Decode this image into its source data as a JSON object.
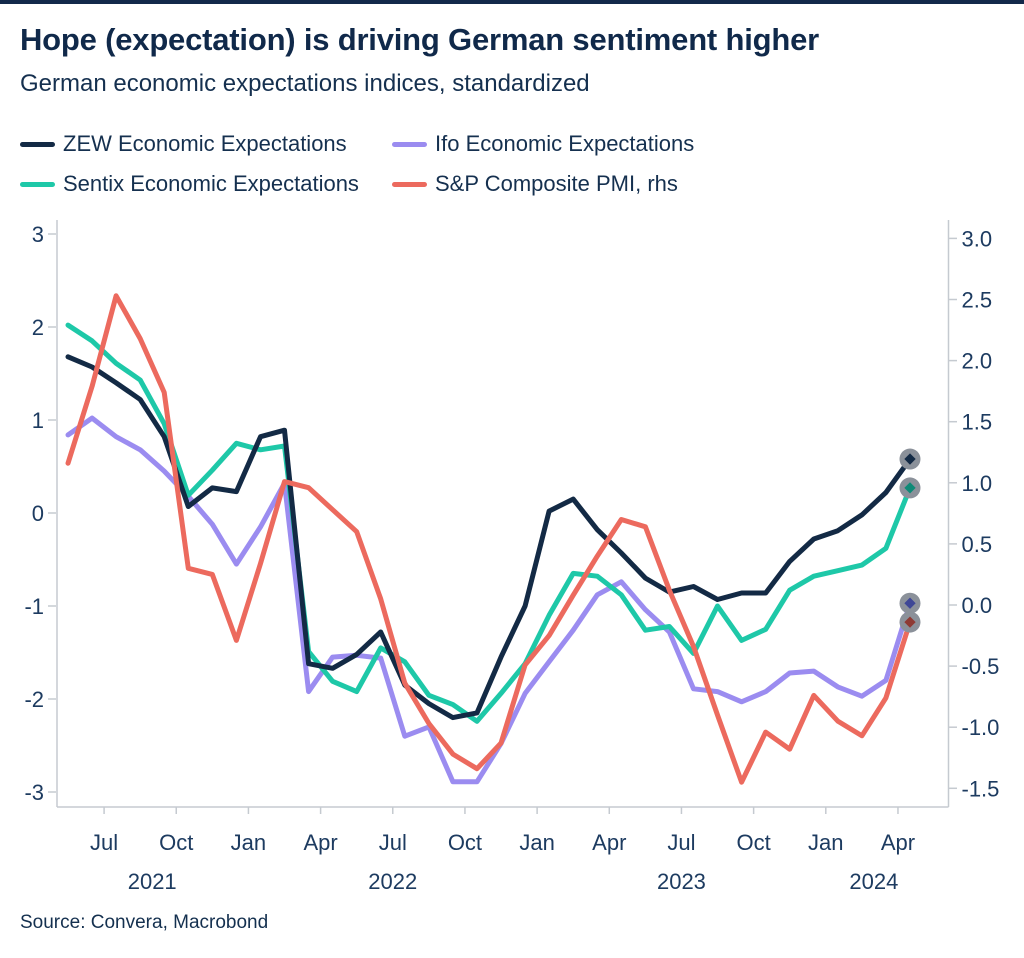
{
  "header": {
    "title": "Hope (expectation) is driving German sentiment higher",
    "subtitle": "German economic expectations indices, standardized"
  },
  "legend": [
    {
      "id": "zew",
      "label": "ZEW Economic Expectations",
      "color": "#132a45"
    },
    {
      "id": "ifo",
      "label": "Ifo Economic Expectations",
      "color": "#9b8cf0"
    },
    {
      "id": "sentix",
      "label": "Sentix Economic Expectations",
      "color": "#1ec8a8"
    },
    {
      "id": "pmi",
      "label": "S&P Composite PMI, rhs",
      "color": "#ec6a5e"
    }
  ],
  "source": "Source: Convera, Macrobond",
  "chart_data": {
    "type": "line",
    "title": "Hope (expectation) is driving German sentiment higher",
    "subtitle": "German economic expectations indices, standardized",
    "x": [
      "2021-05",
      "2021-06",
      "2021-07",
      "2021-08",
      "2021-09",
      "2021-10",
      "2021-11",
      "2021-12",
      "2022-01",
      "2022-02",
      "2022-03",
      "2022-04",
      "2022-05",
      "2022-06",
      "2022-07",
      "2022-08",
      "2022-09",
      "2022-10",
      "2022-11",
      "2022-12",
      "2023-01",
      "2023-02",
      "2023-03",
      "2023-04",
      "2023-05",
      "2023-06",
      "2023-07",
      "2023-08",
      "2023-09",
      "2023-10",
      "2023-11",
      "2023-12",
      "2024-01",
      "2024-02",
      "2024-03",
      "2024-04"
    ],
    "series": [
      {
        "id": "zew",
        "name": "ZEW Economic Expectations",
        "axis": "left",
        "color": "#132a45",
        "dot_color": "#132a45",
        "values": [
          1.68,
          1.57,
          1.4,
          1.22,
          0.82,
          0.07,
          0.27,
          0.23,
          0.82,
          0.89,
          -1.62,
          -1.67,
          -1.52,
          -1.28,
          -1.85,
          -2.05,
          -2.2,
          -2.15,
          -1.55,
          -1.0,
          0.02,
          0.15,
          -0.18,
          -0.43,
          -0.7,
          -0.85,
          -0.79,
          -0.93,
          -0.86,
          -0.86,
          -0.52,
          -0.28,
          -0.19,
          -0.02,
          0.22,
          0.58
        ]
      },
      {
        "id": "sentix",
        "name": "Sentix Economic Expectations",
        "axis": "left",
        "color": "#1ec8a8",
        "dot_color": "#0f8a77",
        "values": [
          2.02,
          1.85,
          1.61,
          1.43,
          0.96,
          0.19,
          0.46,
          0.75,
          0.68,
          0.72,
          -1.49,
          -1.81,
          -1.92,
          -1.45,
          -1.6,
          -1.96,
          -2.06,
          -2.24,
          -1.94,
          -1.62,
          -1.1,
          -0.65,
          -0.68,
          -0.88,
          -1.26,
          -1.22,
          -1.51,
          -1.0,
          -1.37,
          -1.25,
          -0.83,
          -0.68,
          -0.62,
          -0.56,
          -0.38,
          0.27
        ]
      },
      {
        "id": "ifo",
        "name": "Ifo Economic Expectations",
        "axis": "left",
        "color": "#9b8cf0",
        "dot_color": "#3e4796",
        "values": [
          0.84,
          1.02,
          0.82,
          0.68,
          0.45,
          0.18,
          -0.12,
          -0.55,
          -0.15,
          0.32,
          -1.92,
          -1.55,
          -1.53,
          -1.56,
          -2.4,
          -2.3,
          -2.89,
          -2.89,
          -2.48,
          -1.94,
          -1.6,
          -1.26,
          -0.88,
          -0.74,
          -1.04,
          -1.28,
          -1.89,
          -1.92,
          -2.03,
          -1.92,
          -1.72,
          -1.7,
          -1.87,
          -1.97,
          -1.8,
          -0.97
        ]
      },
      {
        "id": "pmi",
        "name": "S&P Composite PMI, rhs",
        "axis": "right",
        "color": "#ec6a5e",
        "dot_color": "#8e3a34",
        "values": [
          1.16,
          1.79,
          2.53,
          2.18,
          1.74,
          0.3,
          0.25,
          -0.29,
          0.34,
          1.01,
          0.96,
          0.78,
          0.6,
          0.05,
          -0.64,
          -0.97,
          -1.22,
          -1.34,
          -1.13,
          -0.49,
          -0.25,
          0.08,
          0.4,
          0.7,
          0.64,
          0.12,
          -0.34,
          -0.9,
          -1.45,
          -1.04,
          -1.18,
          -0.74,
          -0.95,
          -1.07,
          -0.76,
          -0.14
        ]
      }
    ],
    "left_axis": {
      "ticks": [
        {
          "value": 3,
          "label": "3"
        },
        {
          "value": 2,
          "label": "2"
        },
        {
          "value": 1,
          "label": "1"
        },
        {
          "value": 0,
          "label": "0"
        },
        {
          "value": -1,
          "label": "-1"
        },
        {
          "value": -2,
          "label": "-2"
        },
        {
          "value": -3,
          "label": "-3"
        }
      ],
      "range": [
        -3.15,
        3.15
      ]
    },
    "right_axis": {
      "ticks": [
        {
          "value": 3.0,
          "label": "3.0"
        },
        {
          "value": 2.5,
          "label": "2.5"
        },
        {
          "value": 2.0,
          "label": "2.0"
        },
        {
          "value": 1.5,
          "label": "1.5"
        },
        {
          "value": 1.0,
          "label": "1.0"
        },
        {
          "value": 0.5,
          "label": "0.5"
        },
        {
          "value": 0.0,
          "label": "0.0"
        },
        {
          "value": -0.5,
          "label": "-0.5"
        },
        {
          "value": -1.0,
          "label": "-1.0"
        },
        {
          "value": -1.5,
          "label": "-1.5"
        }
      ],
      "range": [
        -1.65,
        3.15
      ]
    },
    "x_ticks": [
      {
        "label": "Jul",
        "month_index": 2
      },
      {
        "label": "Oct",
        "month_index": 5
      },
      {
        "label": "Jan",
        "month_index": 8
      },
      {
        "label": "Apr",
        "month_index": 11
      },
      {
        "label": "Jul",
        "month_index": 14
      },
      {
        "label": "Oct",
        "month_index": 17
      },
      {
        "label": "Jan",
        "month_index": 20
      },
      {
        "label": "Apr",
        "month_index": 23
      },
      {
        "label": "Jul",
        "month_index": 26
      },
      {
        "label": "Oct",
        "month_index": 29
      },
      {
        "label": "Jan",
        "month_index": 32
      },
      {
        "label": "Apr",
        "month_index": 35
      }
    ],
    "year_labels": [
      {
        "label": "2021",
        "from": 0,
        "to": 7
      },
      {
        "label": "2022",
        "from": 8,
        "to": 19
      },
      {
        "label": "2023",
        "from": 20,
        "to": 31
      },
      {
        "label": "2024",
        "from": 32,
        "to": 35
      }
    ],
    "grid": false,
    "legend_position": "top-left",
    "end_markers": true,
    "marker_color": "#8b919a",
    "xlabel": "",
    "ylabel": ""
  }
}
